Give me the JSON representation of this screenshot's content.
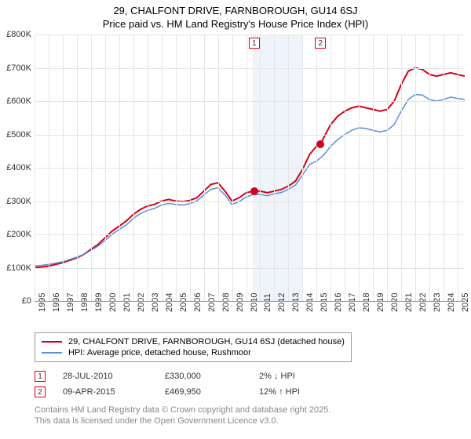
{
  "title_line1": "29, CHALFONT DRIVE, FARNBOROUGH, GU14 6SJ",
  "title_line2": "Price paid vs. HM Land Registry's House Price Index (HPI)",
  "chart": {
    "type": "line",
    "background_color": "#ffffff",
    "grid_color": "#e5e5e5",
    "shaded_band_color": "#eff4fb",
    "shaded_band_xstart": 2010.5,
    "shaded_band_xend": 2014.0,
    "xlim": [
      1995,
      2025.5
    ],
    "ylim": [
      0,
      800000
    ],
    "ytick_step": 100000,
    "ytick_labels": [
      "£0",
      "£100K",
      "£200K",
      "£300K",
      "£400K",
      "£500K",
      "£600K",
      "£700K",
      "£800K"
    ],
    "xtick_step": 1,
    "xtick_labels": [
      "1995",
      "1996",
      "1997",
      "1998",
      "1999",
      "2000",
      "2001",
      "2002",
      "2003",
      "2004",
      "2005",
      "2006",
      "2007",
      "2008",
      "2009",
      "2010",
      "2011",
      "2012",
      "2013",
      "2014",
      "2015",
      "2016",
      "2017",
      "2018",
      "2019",
      "2020",
      "2021",
      "2022",
      "2023",
      "2024",
      "2025"
    ],
    "label_fontsize": 11,
    "series": [
      {
        "name": "price_paid",
        "label": "29, CHALFONT DRIVE, FARNBOROUGH, GU14 6SJ (detached house)",
        "color": "#d4001a",
        "line_width": 2,
        "points_x": [
          1995,
          1995.5,
          1996,
          1996.5,
          1997,
          1997.5,
          1998,
          1998.5,
          1999,
          1999.5,
          2000,
          2000.5,
          2001,
          2001.5,
          2002,
          2002.5,
          2003,
          2003.5,
          2004,
          2004.5,
          2005,
          2005.5,
          2006,
          2006.5,
          2007,
          2007.5,
          2008,
          2008.5,
          2009,
          2009.5,
          2010,
          2010.5,
          2011,
          2011.5,
          2012,
          2012.5,
          2013,
          2013.5,
          2014,
          2014.5,
          2015,
          2015.27,
          2015.5,
          2016,
          2016.5,
          2017,
          2017.5,
          2018,
          2018.5,
          2019,
          2019.5,
          2020,
          2020.5,
          2021,
          2021.5,
          2022,
          2022.5,
          2023,
          2023.5,
          2024,
          2024.5,
          2025,
          2025.5
        ],
        "points_y": [
          100000,
          102000,
          105000,
          110000,
          115000,
          122000,
          130000,
          140000,
          155000,
          170000,
          190000,
          210000,
          225000,
          240000,
          260000,
          275000,
          285000,
          290000,
          300000,
          305000,
          300000,
          298000,
          302000,
          310000,
          330000,
          350000,
          355000,
          330000,
          300000,
          310000,
          325000,
          330000,
          330000,
          325000,
          330000,
          335000,
          345000,
          360000,
          395000,
          440000,
          465000,
          470000,
          490000,
          530000,
          555000,
          570000,
          580000,
          585000,
          580000,
          575000,
          570000,
          575000,
          600000,
          650000,
          690000,
          700000,
          695000,
          680000,
          675000,
          680000,
          685000,
          680000,
          675000
        ]
      },
      {
        "name": "hpi",
        "label": "HPI: Average price, detached house, Rushmoor",
        "color": "#5b8fd6",
        "line_width": 1.5,
        "points_x": [
          1995,
          1995.5,
          1996,
          1996.5,
          1997,
          1997.5,
          1998,
          1998.5,
          1999,
          1999.5,
          2000,
          2000.5,
          2001,
          2001.5,
          2002,
          2002.5,
          2003,
          2003.5,
          2004,
          2004.5,
          2005,
          2005.5,
          2006,
          2006.5,
          2007,
          2007.5,
          2008,
          2008.5,
          2009,
          2009.5,
          2010,
          2010.5,
          2011,
          2011.5,
          2012,
          2012.5,
          2013,
          2013.5,
          2014,
          2014.5,
          2015,
          2015.5,
          2016,
          2016.5,
          2017,
          2017.5,
          2018,
          2018.5,
          2019,
          2019.5,
          2020,
          2020.5,
          2021,
          2021.5,
          2022,
          2022.5,
          2023,
          2023.5,
          2024,
          2024.5,
          2025,
          2025.5
        ],
        "points_y": [
          105000,
          107000,
          110000,
          114000,
          118000,
          125000,
          132000,
          140000,
          152000,
          165000,
          182000,
          200000,
          215000,
          228000,
          248000,
          262000,
          272000,
          278000,
          288000,
          293000,
          290000,
          288000,
          292000,
          300000,
          318000,
          335000,
          340000,
          318000,
          290000,
          298000,
          312000,
          320000,
          320000,
          316000,
          322000,
          326000,
          335000,
          348000,
          378000,
          410000,
          420000,
          438000,
          465000,
          485000,
          500000,
          513000,
          520000,
          518000,
          512000,
          508000,
          512000,
          530000,
          570000,
          605000,
          620000,
          618000,
          605000,
          600000,
          605000,
          612000,
          608000,
          605000
        ]
      }
    ],
    "sale_markers": [
      {
        "n": "1",
        "x": 2010.57,
        "y": 330000,
        "color": "#d4001a"
      },
      {
        "n": "2",
        "x": 2015.27,
        "y": 469950,
        "color": "#d4001a"
      }
    ]
  },
  "legend": {
    "items": [
      {
        "color": "#d4001a",
        "width": 2,
        "label": "29, CHALFONT DRIVE, FARNBOROUGH, GU14 6SJ (detached house)"
      },
      {
        "color": "#5b8fd6",
        "width": 1.5,
        "label": "HPI: Average price, detached house, Rushmoor"
      }
    ]
  },
  "sales_rows": [
    {
      "n": "1",
      "box_color": "#d4001a",
      "date": "28-JUL-2010",
      "price": "£330,000",
      "diff": "2% ↓ HPI"
    },
    {
      "n": "2",
      "box_color": "#d4001a",
      "date": "09-APR-2015",
      "price": "£469,950",
      "diff": "12% ↑ HPI"
    }
  ],
  "attribution_line1": "Contains HM Land Registry data © Crown copyright and database right 2025.",
  "attribution_line2": "This data is licensed under the Open Government Licence v3.0."
}
